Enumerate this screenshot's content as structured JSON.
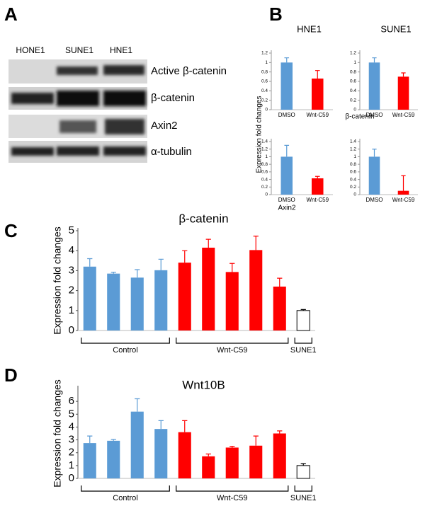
{
  "panels": [
    "A",
    "B",
    "C",
    "D"
  ],
  "blot": {
    "lanes": [
      "HONE1",
      "SUNE1",
      "HNE1"
    ],
    "rows": [
      "Active β-catenin",
      "β-catenin",
      "Axin2",
      "α-tubulin"
    ]
  },
  "panel_b": {
    "ylabel": "Expression fold changes",
    "row_labels": [
      "β-catenin",
      "Axin2"
    ]
  },
  "chart_data": [
    {
      "type": "bar",
      "title": "HNE1",
      "categories": [
        "DMSO",
        "Wnt-C59"
      ],
      "values": [
        1.0,
        0.66
      ],
      "errors": [
        0.1,
        0.17
      ],
      "colors": [
        "#5b9bd5",
        "#ff0000"
      ],
      "ylim": [
        0,
        1.2
      ],
      "yticks": [
        0,
        0.2,
        0.4,
        0.6,
        0.8,
        1,
        1.2
      ]
    },
    {
      "type": "bar",
      "title": "SUNE1",
      "categories": [
        "DMSO",
        "Wnt-C59"
      ],
      "values": [
        1.0,
        0.7
      ],
      "errors": [
        0.1,
        0.08
      ],
      "colors": [
        "#5b9bd5",
        "#ff0000"
      ],
      "ylim": [
        0,
        1.2
      ],
      "yticks": [
        0,
        0.2,
        0.4,
        0.6,
        0.8,
        1,
        1.2
      ]
    },
    {
      "type": "bar",
      "categories": [
        "DMSO",
        "Wnt-C59"
      ],
      "values": [
        1.0,
        0.43
      ],
      "errors": [
        0.3,
        0.05
      ],
      "colors": [
        "#5b9bd5",
        "#ff0000"
      ],
      "ylim": [
        0,
        1.4
      ],
      "yticks": [
        0,
        0.2,
        0.4,
        0.6,
        0.8,
        1,
        1.2,
        1.4
      ]
    },
    {
      "type": "bar",
      "categories": [
        "DMSO",
        "Wnt-C59"
      ],
      "values": [
        1.0,
        0.1
      ],
      "errors": [
        0.2,
        0.4
      ],
      "colors": [
        "#5b9bd5",
        "#ff0000"
      ],
      "ylim": [
        0,
        1.4
      ],
      "yticks": [
        0,
        0.2,
        0.4,
        0.6,
        0.8,
        1,
        1.2,
        1.4
      ]
    },
    {
      "type": "bar",
      "title": "β-catenin",
      "ylabel": "Expression fold changes",
      "categories": [
        null,
        null,
        null,
        null,
        null,
        null,
        null,
        null,
        null,
        null
      ],
      "values": [
        3.2,
        2.85,
        2.65,
        3.02,
        3.4,
        4.15,
        2.93,
        4.03,
        2.2,
        1.0
      ],
      "errors": [
        0.4,
        0.07,
        0.4,
        0.55,
        0.6,
        0.42,
        0.43,
        0.7,
        0.42,
        0.05
      ],
      "colors": [
        "#5b9bd5",
        "#5b9bd5",
        "#5b9bd5",
        "#5b9bd5",
        "#ff0000",
        "#ff0000",
        "#ff0000",
        "#ff0000",
        "#ff0000",
        "#ffffff"
      ],
      "group_labels": [
        "Control",
        "Wnt-C59",
        "SUNE1"
      ],
      "ylim": [
        0,
        5
      ],
      "yticks": [
        0,
        1,
        2,
        3,
        4,
        5
      ]
    },
    {
      "type": "bar",
      "title": "Wnt10B",
      "ylabel": "Expression fold changes",
      "categories": [
        null,
        null,
        null,
        null,
        null,
        null,
        null,
        null,
        null,
        null
      ],
      "values": [
        2.75,
        2.93,
        5.2,
        3.85,
        3.6,
        1.72,
        2.4,
        2.55,
        3.5,
        1.0
      ],
      "errors": [
        0.55,
        0.1,
        1.0,
        0.65,
        0.9,
        0.18,
        0.1,
        0.75,
        0.2,
        0.15
      ],
      "colors": [
        "#5b9bd5",
        "#5b9bd5",
        "#5b9bd5",
        "#5b9bd5",
        "#ff0000",
        "#ff0000",
        "#ff0000",
        "#ff0000",
        "#ff0000",
        "#ffffff"
      ],
      "group_labels": [
        "Control",
        "Wnt-C59",
        "SUNE1"
      ],
      "ylim": [
        0,
        7
      ],
      "yticks": [
        0,
        1,
        2,
        3,
        4,
        5,
        6
      ]
    }
  ]
}
